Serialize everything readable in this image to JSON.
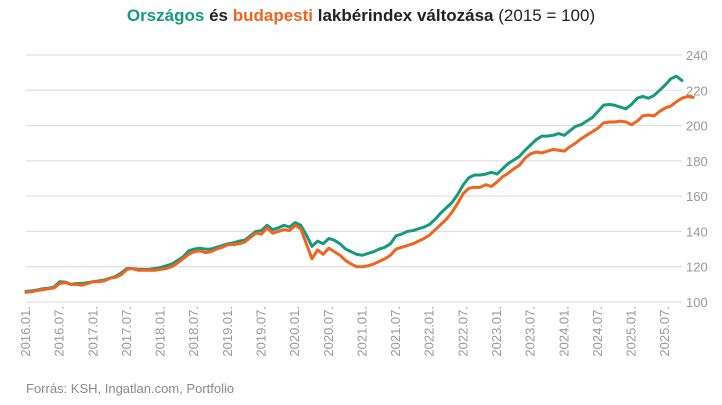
{
  "title": {
    "national": "Országos",
    "connector": "és",
    "budapest": "budapesti",
    "rest": "lakbérindex változása",
    "suffix": "(2015 = 100)"
  },
  "source": "Forrás: KSH, Ingatlan.com, Portfolio",
  "colors": {
    "national": "#159a7c",
    "budapest": "#ef6420",
    "grid": "#d9d9d9",
    "tick": "#999999"
  },
  "chart_data": {
    "type": "line",
    "title": "Országos és budapesti lakbérindex változása (2015 = 100)",
    "xlabel": "",
    "ylabel": "",
    "ylim": [
      100,
      240
    ],
    "yticks": [
      100,
      120,
      140,
      160,
      180,
      200,
      220,
      240
    ],
    "x_start": "2016-01",
    "x_end": "2025-09",
    "xtick_labels": [
      "2016.01.",
      "2016.07.",
      "2017.01.",
      "2017.07.",
      "2018.01.",
      "2018.07.",
      "2019.01.",
      "2019.07.",
      "2020.01.",
      "2020.07.",
      "2021.01.",
      "2021.07.",
      "2022.01.",
      "2022.07.",
      "2023.01.",
      "2023.07.",
      "2024.01.",
      "2024.07.",
      "2025.01.",
      "2025.07."
    ],
    "series": [
      {
        "name": "Országos",
        "color": "#159a7c",
        "values": [
          106,
          106.3,
          106.8,
          107.5,
          107.8,
          108.5,
          111.5,
          111.3,
          110,
          110.5,
          110.5,
          111,
          111.5,
          112,
          112.5,
          113.5,
          114.5,
          116.5,
          119,
          119,
          118.5,
          118.5,
          118.5,
          119,
          119.5,
          120.5,
          121.5,
          123.5,
          125.5,
          129,
          130,
          130.5,
          130,
          130,
          131,
          132,
          133,
          133.5,
          134.5,
          135,
          137.5,
          140,
          140.5,
          143.5,
          141,
          142,
          143.5,
          142.5,
          145,
          143.5,
          138,
          131.5,
          134.5,
          133,
          136,
          135,
          133,
          130,
          128.5,
          127,
          126.5,
          127.5,
          128.5,
          130,
          131,
          133,
          137.5,
          138.5,
          140,
          140.5,
          141.5,
          142.5,
          144,
          147,
          150.5,
          153.5,
          156.5,
          161,
          166.5,
          170.5,
          172,
          172,
          172.5,
          173.5,
          172.5,
          175.5,
          178.5,
          180.5,
          182.5,
          186,
          189,
          192,
          194,
          194,
          194.5,
          195.5,
          194.5,
          197,
          199.5,
          200.5,
          202.5,
          204.5,
          208,
          211.5,
          212,
          211.5,
          210.5,
          209.5,
          212,
          215.5,
          216.5,
          215.5,
          217,
          220,
          223,
          226.5,
          228,
          225.5
        ]
      },
      {
        "name": "Budapest",
        "color": "#ef6420",
        "values": [
          105.5,
          105.8,
          106.5,
          107,
          107.5,
          108,
          110.5,
          111,
          110,
          110,
          109.5,
          110.5,
          111.5,
          111.5,
          112,
          113.5,
          114,
          115.5,
          118.5,
          119,
          118,
          118,
          118,
          118,
          118.5,
          119,
          120,
          122,
          124.5,
          127,
          128.5,
          129,
          128,
          128.5,
          130,
          131,
          132.5,
          132.5,
          133,
          134,
          136.5,
          139,
          138.5,
          142,
          139,
          140,
          141,
          140.5,
          143.5,
          141.5,
          133,
          124.5,
          129.5,
          127,
          130.5,
          128.5,
          126.5,
          123.5,
          121.5,
          120,
          120,
          120.5,
          121.5,
          123,
          124.5,
          126.5,
          130,
          131,
          132,
          133,
          134.5,
          136,
          138,
          141,
          144,
          147,
          151,
          156,
          161.5,
          164.5,
          165,
          165,
          166.5,
          165.5,
          168,
          171,
          173,
          175.5,
          177.5,
          181.5,
          184,
          185,
          184.5,
          185.5,
          186.5,
          186,
          185.5,
          188,
          190,
          192.5,
          194.5,
          196.5,
          198.5,
          201.5,
          202,
          202,
          202.5,
          202,
          200.5,
          202.5,
          205.5,
          206,
          205.5,
          208,
          210,
          211,
          213.5,
          215.5,
          216.5,
          216
        ]
      }
    ]
  }
}
